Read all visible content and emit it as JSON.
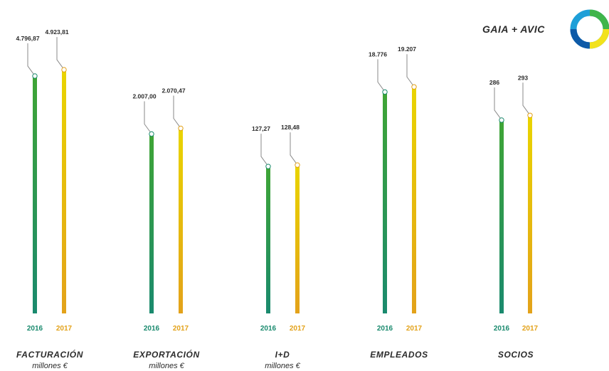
{
  "brand": {
    "text": "GAIA + AVIC"
  },
  "colors": {
    "green_top": "#3fa535",
    "green_bottom": "#1a8a6e",
    "yellow_top": "#e9d400",
    "yellow_bottom": "#e3a21a",
    "label_text": "#2b2b2b",
    "leader_line": "#8a8a8a",
    "logo_ring": [
      "#1e9fd8",
      "#3fb54a",
      "#f2e21b",
      "#0e5aa7"
    ]
  },
  "chart_data": [
    {
      "type": "bar",
      "title": "FACTURACIÓN",
      "unit": "millones €",
      "categories": [
        "2016",
        "2017"
      ],
      "values": [
        4796.87,
        4923.81
      ],
      "labels": [
        "4.796,87",
        "4.923,81"
      ],
      "ylim": [
        0,
        5600
      ]
    },
    {
      "type": "bar",
      "title": "EXPORTACIÓN",
      "unit": "millones €",
      "categories": [
        "2016",
        "2017"
      ],
      "values": [
        2007.0,
        2070.47
      ],
      "labels": [
        "2.007,00",
        "2.070,47"
      ],
      "ylim": [
        0,
        3100
      ]
    },
    {
      "type": "bar",
      "title": "I+D",
      "unit": "millones €",
      "categories": [
        "2016",
        "2017"
      ],
      "values": [
        127.27,
        128.48
      ],
      "labels": [
        "127,27",
        "128,48"
      ],
      "ylim": [
        0,
        240
      ]
    },
    {
      "type": "bar",
      "title": "EMPLEADOS",
      "unit": "",
      "categories": [
        "2016",
        "2017"
      ],
      "values": [
        18776,
        19207
      ],
      "labels": [
        "18.776",
        "19.207"
      ],
      "ylim": [
        0,
        23500
      ]
    },
    {
      "type": "bar",
      "title": "SOCIOS",
      "unit": "",
      "categories": [
        "2016",
        "2017"
      ],
      "values": [
        286,
        293
      ],
      "labels": [
        "286",
        "293"
      ],
      "ylim": [
        0,
        410
      ]
    }
  ]
}
